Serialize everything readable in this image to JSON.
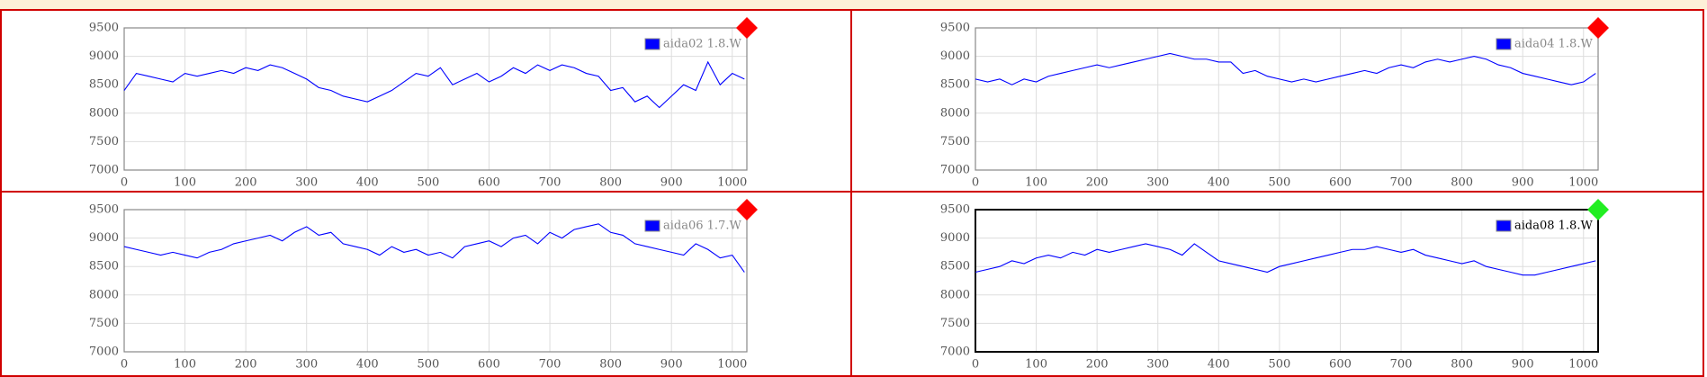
{
  "chart_data": [
    {
      "type": "line",
      "legend_text_color": "#888888",
      "frame_color": "#888888",
      "indicator_color": "#ff0000",
      "grid": true,
      "xlim": [
        0,
        1024
      ],
      "xticks": [
        0,
        100,
        200,
        300,
        400,
        500,
        600,
        700,
        800,
        900,
        1000
      ],
      "ylim": [
        7000,
        9500
      ],
      "yticks": [
        7000,
        7500,
        8000,
        8500,
        9000,
        9500
      ],
      "x": [
        0,
        20,
        40,
        60,
        80,
        100,
        120,
        140,
        160,
        180,
        200,
        220,
        240,
        260,
        280,
        300,
        320,
        340,
        360,
        380,
        400,
        420,
        440,
        460,
        480,
        500,
        520,
        540,
        560,
        580,
        600,
        620,
        640,
        660,
        680,
        700,
        720,
        740,
        760,
        780,
        800,
        820,
        840,
        860,
        880,
        900,
        920,
        940,
        960,
        980,
        1000,
        1020
      ],
      "series": [
        {
          "name": "aida02 1.8.W",
          "color": "#0000ff",
          "values": [
            8400,
            8700,
            8650,
            8600,
            8550,
            8700,
            8650,
            8700,
            8750,
            8700,
            8800,
            8750,
            8850,
            8800,
            8700,
            8600,
            8450,
            8400,
            8300,
            8250,
            8200,
            8300,
            8400,
            8550,
            8700,
            8650,
            8800,
            8500,
            8600,
            8700,
            8550,
            8650,
            8800,
            8700,
            8850,
            8750,
            8850,
            8800,
            8700,
            8650,
            8400,
            8450,
            8200,
            8300,
            8100,
            8300,
            8500,
            8400,
            8900,
            8500,
            8700,
            8600
          ]
        }
      ]
    },
    {
      "type": "line",
      "legend_text_color": "#888888",
      "frame_color": "#888888",
      "indicator_color": "#ff0000",
      "grid": true,
      "xlim": [
        0,
        1024
      ],
      "xticks": [
        0,
        100,
        200,
        300,
        400,
        500,
        600,
        700,
        800,
        900,
        1000
      ],
      "ylim": [
        7000,
        9500
      ],
      "yticks": [
        7000,
        7500,
        8000,
        8500,
        9000,
        9500
      ],
      "x": [
        0,
        20,
        40,
        60,
        80,
        100,
        120,
        140,
        160,
        180,
        200,
        220,
        240,
        260,
        280,
        300,
        320,
        340,
        360,
        380,
        400,
        420,
        440,
        460,
        480,
        500,
        520,
        540,
        560,
        580,
        600,
        620,
        640,
        660,
        680,
        700,
        720,
        740,
        760,
        780,
        800,
        820,
        840,
        860,
        880,
        900,
        920,
        940,
        960,
        980,
        1000,
        1020
      ],
      "series": [
        {
          "name": "aida04 1.8.W",
          "color": "#0000ff",
          "values": [
            8600,
            8550,
            8600,
            8500,
            8600,
            8550,
            8650,
            8700,
            8750,
            8800,
            8850,
            8800,
            8850,
            8900,
            8950,
            9000,
            9050,
            9000,
            8950,
            8950,
            8900,
            8900,
            8700,
            8750,
            8650,
            8600,
            8550,
            8600,
            8550,
            8600,
            8650,
            8700,
            8750,
            8700,
            8800,
            8850,
            8800,
            8900,
            8950,
            8900,
            8950,
            9000,
            8950,
            8850,
            8800,
            8700,
            8650,
            8600,
            8550,
            8500,
            8550,
            8700
          ]
        }
      ]
    },
    {
      "type": "line",
      "legend_text_color": "#888888",
      "frame_color": "#888888",
      "indicator_color": "#ff0000",
      "grid": true,
      "xlim": [
        0,
        1024
      ],
      "xticks": [
        0,
        100,
        200,
        300,
        400,
        500,
        600,
        700,
        800,
        900,
        1000
      ],
      "ylim": [
        7000,
        9500
      ],
      "yticks": [
        7000,
        7500,
        8000,
        8500,
        9000,
        9500
      ],
      "x": [
        0,
        20,
        40,
        60,
        80,
        100,
        120,
        140,
        160,
        180,
        200,
        220,
        240,
        260,
        280,
        300,
        320,
        340,
        360,
        380,
        400,
        420,
        440,
        460,
        480,
        500,
        520,
        540,
        560,
        580,
        600,
        620,
        640,
        660,
        680,
        700,
        720,
        740,
        760,
        780,
        800,
        820,
        840,
        860,
        880,
        900,
        920,
        940,
        960,
        980,
        1000,
        1020
      ],
      "series": [
        {
          "name": "aida06 1.7.W",
          "color": "#0000ff",
          "values": [
            8850,
            8800,
            8750,
            8700,
            8750,
            8700,
            8650,
            8750,
            8800,
            8900,
            8950,
            9000,
            9050,
            8950,
            9100,
            9200,
            9050,
            9100,
            8900,
            8850,
            8800,
            8700,
            8850,
            8750,
            8800,
            8700,
            8750,
            8650,
            8850,
            8900,
            8950,
            8850,
            9000,
            9050,
            8900,
            9100,
            9000,
            9150,
            9200,
            9250,
            9100,
            9050,
            8900,
            8850,
            8800,
            8750,
            8700,
            8900,
            8800,
            8650,
            8700,
            8400
          ]
        }
      ]
    },
    {
      "type": "line",
      "legend_text_color": "#000000",
      "frame_color": "#000000",
      "indicator_color": "#22ee22",
      "grid": true,
      "xlim": [
        0,
        1024
      ],
      "xticks": [
        0,
        100,
        200,
        300,
        400,
        500,
        600,
        700,
        800,
        900,
        1000
      ],
      "ylim": [
        7000,
        9500
      ],
      "yticks": [
        7000,
        7500,
        8000,
        8500,
        9000,
        9500
      ],
      "x": [
        0,
        20,
        40,
        60,
        80,
        100,
        120,
        140,
        160,
        180,
        200,
        220,
        240,
        260,
        280,
        300,
        320,
        340,
        360,
        380,
        400,
        420,
        440,
        460,
        480,
        500,
        520,
        540,
        560,
        580,
        600,
        620,
        640,
        660,
        680,
        700,
        720,
        740,
        760,
        780,
        800,
        820,
        840,
        860,
        880,
        900,
        920,
        940,
        960,
        980,
        1000,
        1020
      ],
      "series": [
        {
          "name": "aida08 1.8.W",
          "color": "#0000ff",
          "values": [
            8400,
            8450,
            8500,
            8600,
            8550,
            8650,
            8700,
            8650,
            8750,
            8700,
            8800,
            8750,
            8800,
            8850,
            8900,
            8850,
            8800,
            8700,
            8900,
            8750,
            8600,
            8550,
            8500,
            8450,
            8400,
            8500,
            8550,
            8600,
            8650,
            8700,
            8750,
            8800,
            8800,
            8850,
            8800,
            8750,
            8800,
            8700,
            8650,
            8600,
            8550,
            8600,
            8500,
            8450,
            8400,
            8350,
            8350,
            8400,
            8450,
            8500,
            8550,
            8600
          ]
        }
      ]
    }
  ]
}
